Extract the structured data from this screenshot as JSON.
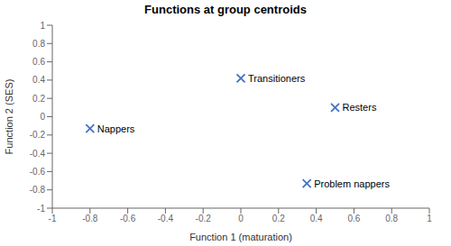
{
  "chart_data": {
    "type": "scatter",
    "title": "Functions at group centroids",
    "x_label": "Function 1 (maturation)",
    "y_label": "Function 2 (SES)",
    "x": [
      0.0,
      0.5,
      -0.8,
      0.35
    ],
    "values": [
      0.42,
      0.1,
      -0.13,
      -0.73
    ],
    "labels": [
      "Transitioners",
      "Resters",
      "Nappers",
      "Problem nappers"
    ],
    "color": "#4472C4",
    "marker": "x",
    "xlim": [
      -1,
      1
    ],
    "ylim": [
      -1,
      1
    ],
    "xticks": [
      -1,
      -0.8,
      -0.6,
      -0.4,
      -0.2,
      0,
      0.2,
      0.4,
      0.6,
      0.8,
      1
    ],
    "yticks": [
      -1,
      -0.8,
      -0.6,
      -0.4,
      -0.2,
      0,
      0.2,
      0.4,
      0.6,
      0.8,
      1
    ],
    "grid": false
  }
}
